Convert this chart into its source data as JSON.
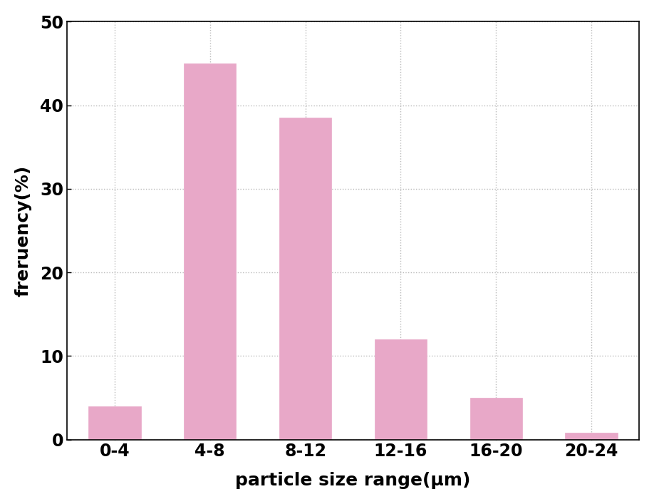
{
  "categories": [
    "0-4",
    "4-8",
    "8-12",
    "12-16",
    "16-20",
    "20-24"
  ],
  "values": [
    4.0,
    45.0,
    38.5,
    12.0,
    5.0,
    0.8
  ],
  "bar_color": "#E8A8C8",
  "xlabel": "particle size range(μm)",
  "ylabel": "freruency(%)",
  "ylim": [
    0,
    50
  ],
  "yticks": [
    0,
    10,
    20,
    30,
    40,
    50
  ],
  "background_color": "#ffffff",
  "grid_color": "#bbbbbb",
  "xlabel_fontsize": 18,
  "ylabel_fontsize": 18,
  "tick_fontsize": 17,
  "bar_width": 0.55
}
